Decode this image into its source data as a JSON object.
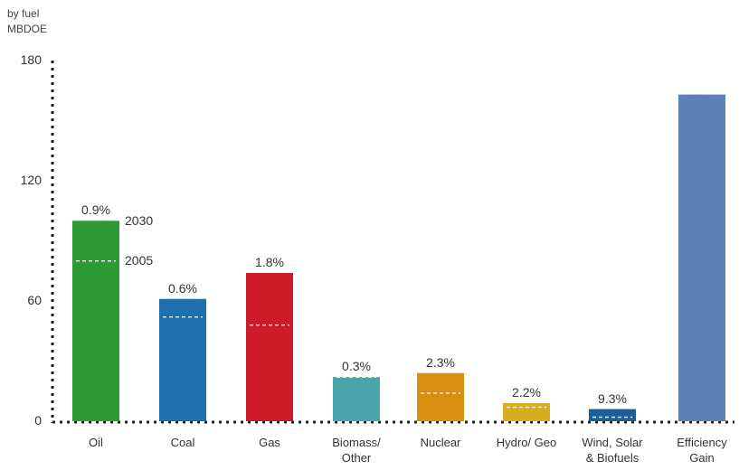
{
  "chart_data": {
    "type": "bar",
    "unit_line1": "by fuel",
    "unit_line2": "MBDOE",
    "y_ticks": [
      "180",
      "120",
      "60",
      "0"
    ],
    "ylim": [
      0,
      180
    ],
    "categories": [
      "Oil",
      "Coal",
      "Gas",
      "Biomass/\nOther",
      "Nuclear",
      "Hydro/ Geo",
      "Wind, Solar\n& Biofuels",
      "Efficiency\nGain"
    ],
    "series": [
      {
        "name": "2030",
        "values": [
          100,
          61,
          74,
          22,
          24,
          9,
          6,
          163
        ]
      },
      {
        "name": "2005",
        "values": [
          80,
          52,
          48,
          22,
          14,
          7,
          2,
          null
        ]
      }
    ],
    "growth_labels": [
      "0.9%",
      "0.6%",
      "1.8%",
      "0.3%",
      "2.3%",
      "2.2%",
      "9.3%",
      ""
    ],
    "annotations": {
      "label_2030": "2030",
      "label_2005": "2005"
    },
    "colors": {
      "Oil": "#2e9a35",
      "Coal": "#1d6fae",
      "Gas": "#cc1c2a",
      "Biomass": "#4aa4ab",
      "Nuclear": "#d98d12",
      "Hydro": "#d6ae1f",
      "Wind": "#1c5f96",
      "Efficiency": "#5f82b6"
    }
  }
}
